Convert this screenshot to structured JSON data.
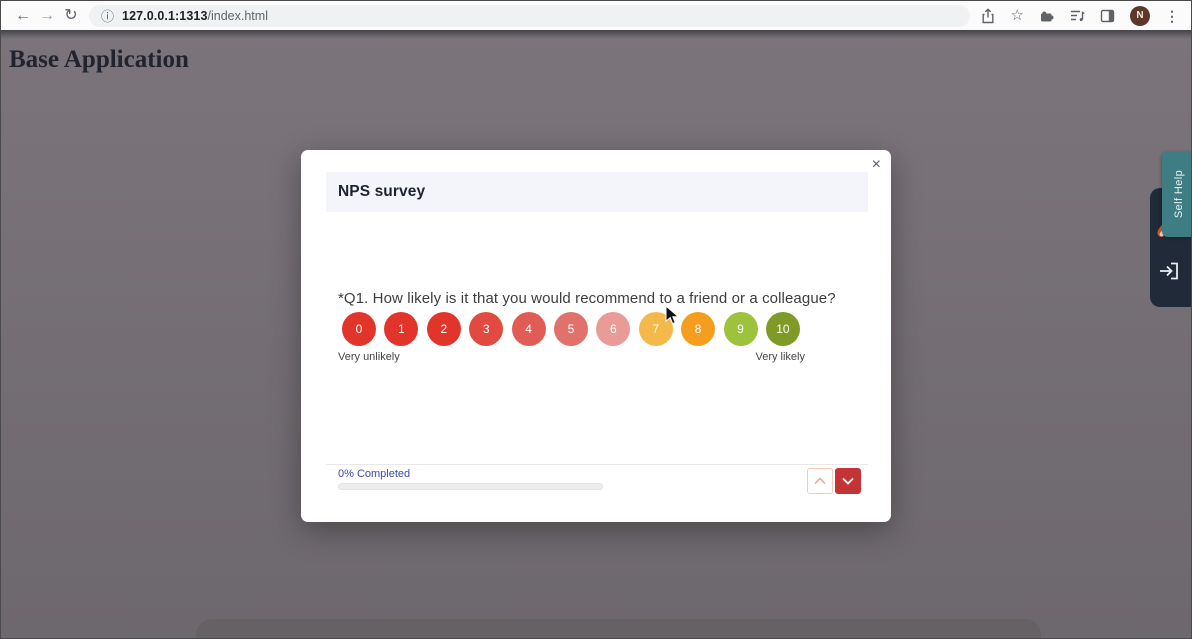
{
  "browser": {
    "back_icon": "←",
    "forward_icon": "→",
    "reload_icon": "↻",
    "info_icon": "ⓘ",
    "url_host": "127.0.0.1:1313",
    "url_path": "/index.html",
    "star_icon": "☆",
    "profile_initial": "N",
    "menu_icon": "⋮"
  },
  "page": {
    "title": "Base Application"
  },
  "survey_modal": {
    "title": "NPS survey",
    "close_icon": "×",
    "question": "*Q1. How likely is it that you would recommend  to a friend or a colleague?",
    "scale": {
      "left_label": "Very unlikely",
      "right_label": "Very likely",
      "options": [
        {
          "value": "0",
          "color": "#e1342b"
        },
        {
          "value": "1",
          "color": "#e1342b"
        },
        {
          "value": "2",
          "color": "#e1342b"
        },
        {
          "value": "3",
          "color": "#e24940"
        },
        {
          "value": "4",
          "color": "#e15c55"
        },
        {
          "value": "5",
          "color": "#e0716b"
        },
        {
          "value": "6",
          "color": "#e99b98"
        },
        {
          "value": "7",
          "color": "#f5b84b"
        },
        {
          "value": "8",
          "color": "#f49d1f"
        },
        {
          "value": "9",
          "color": "#9dc23c"
        },
        {
          "value": "10",
          "color": "#7e9b26"
        }
      ]
    },
    "progress": {
      "label": "0% Completed",
      "percent": 0
    }
  },
  "side_widget": {
    "tab_label": "Self Help"
  },
  "colors": {
    "accent_red": "#c43434",
    "progress_text": "#3a49b4",
    "tab_teal": "#3e7d83",
    "panel_navy": "#202a38",
    "page_gray": "#6f6a6f"
  }
}
